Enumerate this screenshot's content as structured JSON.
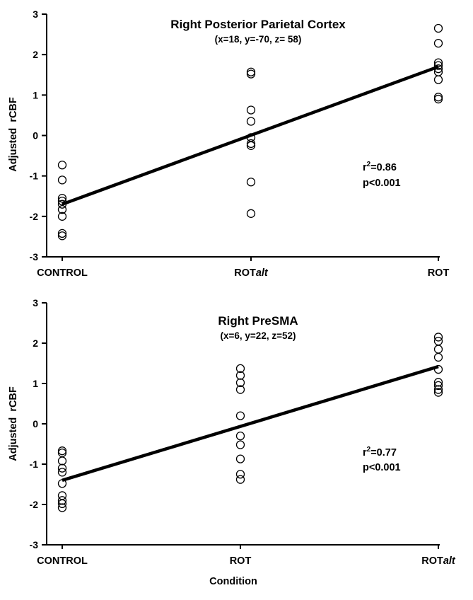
{
  "figure": {
    "xlabel": "Condition"
  },
  "chart_data": [
    {
      "type": "scatter",
      "title": "Right Posterior Parietal Cortex",
      "subtitle": "(x=18, y=-70, z= 58)",
      "xlabel": "",
      "ylabel": "Adjusted  rCBF",
      "categories": [
        {
          "main": "CONTROL",
          "suffix": ""
        },
        {
          "main": "ROT",
          "suffix": "alt"
        },
        {
          "main": "ROT",
          "suffix": ""
        }
      ],
      "ylim": [
        -3,
        3
      ],
      "yticks": [
        3,
        2,
        1,
        0,
        -1,
        -2,
        -3
      ],
      "grid": false,
      "points": [
        {
          "x": 0,
          "y": -0.73
        },
        {
          "x": 0,
          "y": -1.1
        },
        {
          "x": 0,
          "y": -1.55
        },
        {
          "x": 0,
          "y": -1.62
        },
        {
          "x": 0,
          "y": -1.7
        },
        {
          "x": 0,
          "y": -1.83
        },
        {
          "x": 0,
          "y": -2.0
        },
        {
          "x": 0,
          "y": -2.42
        },
        {
          "x": 0,
          "y": -2.48
        },
        {
          "x": 1,
          "y": 1.57
        },
        {
          "x": 1,
          "y": 1.52
        },
        {
          "x": 1,
          "y": 0.63
        },
        {
          "x": 1,
          "y": 0.35
        },
        {
          "x": 1,
          "y": -0.05
        },
        {
          "x": 1,
          "y": -0.2
        },
        {
          "x": 1,
          "y": -0.25
        },
        {
          "x": 1,
          "y": -1.15
        },
        {
          "x": 1,
          "y": -1.93
        },
        {
          "x": 2,
          "y": 2.65
        },
        {
          "x": 2,
          "y": 2.28
        },
        {
          "x": 2,
          "y": 1.8
        },
        {
          "x": 2,
          "y": 1.73
        },
        {
          "x": 2,
          "y": 1.65
        },
        {
          "x": 2,
          "y": 1.57
        },
        {
          "x": 2,
          "y": 1.38
        },
        {
          "x": 2,
          "y": 0.95
        },
        {
          "x": 2,
          "y": 0.9
        }
      ],
      "regression": {
        "x": [
          0,
          2
        ],
        "y": [
          -1.7,
          1.7
        ]
      },
      "annotation": {
        "r_prefix": "r",
        "r_exp": "2",
        "r_value": "=0.86",
        "p": "p<0.001"
      }
    },
    {
      "type": "scatter",
      "title": "Right PreSMA",
      "subtitle": "(x=6, y=22, z=52)",
      "xlabel": "Condition",
      "ylabel": "Adjusted  rCBF",
      "categories": [
        {
          "main": "CONTROL",
          "suffix": ""
        },
        {
          "main": "ROT",
          "suffix": ""
        },
        {
          "main": "ROT",
          "suffix": "alt"
        }
      ],
      "ylim": [
        -3,
        3
      ],
      "yticks": [
        3,
        2,
        1,
        0,
        -1,
        -2,
        -3
      ],
      "grid": false,
      "points": [
        {
          "x": 0,
          "y": -0.67
        },
        {
          "x": 0,
          "y": -0.72
        },
        {
          "x": 0,
          "y": -0.92
        },
        {
          "x": 0,
          "y": -1.1
        },
        {
          "x": 0,
          "y": -1.2
        },
        {
          "x": 0,
          "y": -1.48
        },
        {
          "x": 0,
          "y": -1.78
        },
        {
          "x": 0,
          "y": -1.9
        },
        {
          "x": 0,
          "y": -1.98
        },
        {
          "x": 0,
          "y": -2.08
        },
        {
          "x": 1,
          "y": 1.37
        },
        {
          "x": 1,
          "y": 1.2
        },
        {
          "x": 1,
          "y": 1.02
        },
        {
          "x": 1,
          "y": 0.85
        },
        {
          "x": 1,
          "y": 0.2
        },
        {
          "x": 1,
          "y": -0.3
        },
        {
          "x": 1,
          "y": -0.52
        },
        {
          "x": 1,
          "y": -0.87
        },
        {
          "x": 1,
          "y": -1.25
        },
        {
          "x": 1,
          "y": -1.38
        },
        {
          "x": 2,
          "y": 2.15
        },
        {
          "x": 2,
          "y": 2.05
        },
        {
          "x": 2,
          "y": 1.85
        },
        {
          "x": 2,
          "y": 1.65
        },
        {
          "x": 2,
          "y": 1.35
        },
        {
          "x": 2,
          "y": 1.03
        },
        {
          "x": 2,
          "y": 0.95
        },
        {
          "x": 2,
          "y": 0.85
        },
        {
          "x": 2,
          "y": 0.78
        }
      ],
      "regression": {
        "x": [
          0,
          2
        ],
        "y": [
          -1.4,
          1.42
        ]
      },
      "annotation": {
        "r_prefix": "r",
        "r_exp": "2",
        "r_value": "=0.77",
        "p": "p<0.001"
      }
    }
  ]
}
